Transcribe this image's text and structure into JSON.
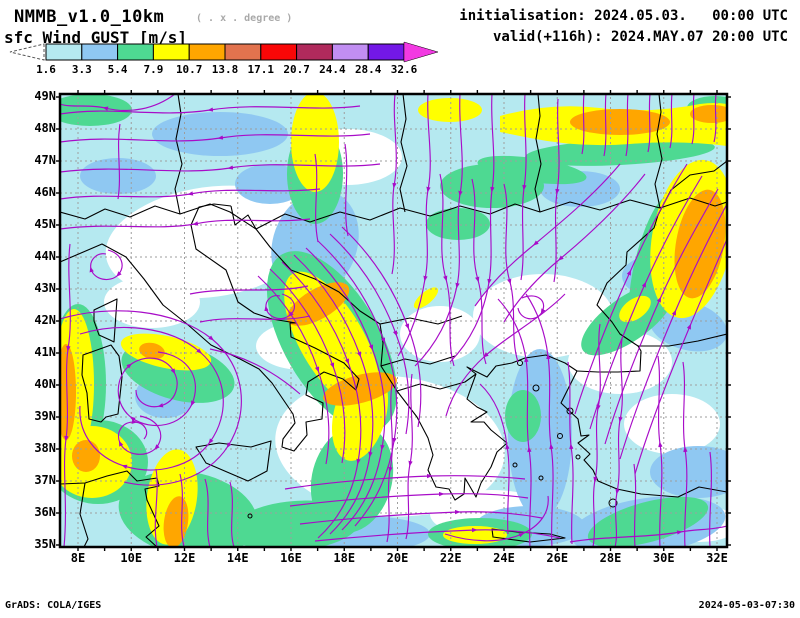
{
  "header": {
    "model_title": "NMMB_v1.0_10km",
    "degree_note": "( . x . degree )",
    "variable_label": "sfc Wind GUST [m/s]",
    "init_line": "initialisation: 2024.05.03.   00:00 UTC",
    "valid_line": "valid(+116h): 2024.MAY.07 20:00 UTC"
  },
  "colorbar": {
    "tick_labels": [
      "1.6",
      "3.3",
      "5.4",
      "7.9",
      "10.7",
      "13.8",
      "17.1",
      "20.7",
      "24.4",
      "28.4",
      "32.6"
    ],
    "bin_colors": [
      "#b5e9f0",
      "#8fc8f2",
      "#4ed992",
      "#ffff00",
      "#ffa600",
      "#e2734e",
      "#f90707",
      "#b02a5c",
      "#c18ef2",
      "#7318e6"
    ],
    "under_color": "#ffffff",
    "over_color": "#f23ae2"
  },
  "map": {
    "lat_labels": [
      "49N",
      "48N",
      "47N",
      "46N",
      "45N",
      "44N",
      "43N",
      "42N",
      "41N",
      "40N",
      "39N",
      "38N",
      "37N",
      "36N",
      "35N"
    ],
    "lon_labels": [
      "8E",
      "10E",
      "12E",
      "14E",
      "16E",
      "18E",
      "20E",
      "22E",
      "24E",
      "26E",
      "28E",
      "30E",
      "32E"
    ]
  },
  "footer": {
    "left": "GrADS: COLA/IGES",
    "right": "2024-05-03-07:30"
  },
  "colors": {
    "streamline": "#a80cc8",
    "coastline": "#000000",
    "gridline": "#9e9e9e",
    "background": "#ffffff"
  }
}
